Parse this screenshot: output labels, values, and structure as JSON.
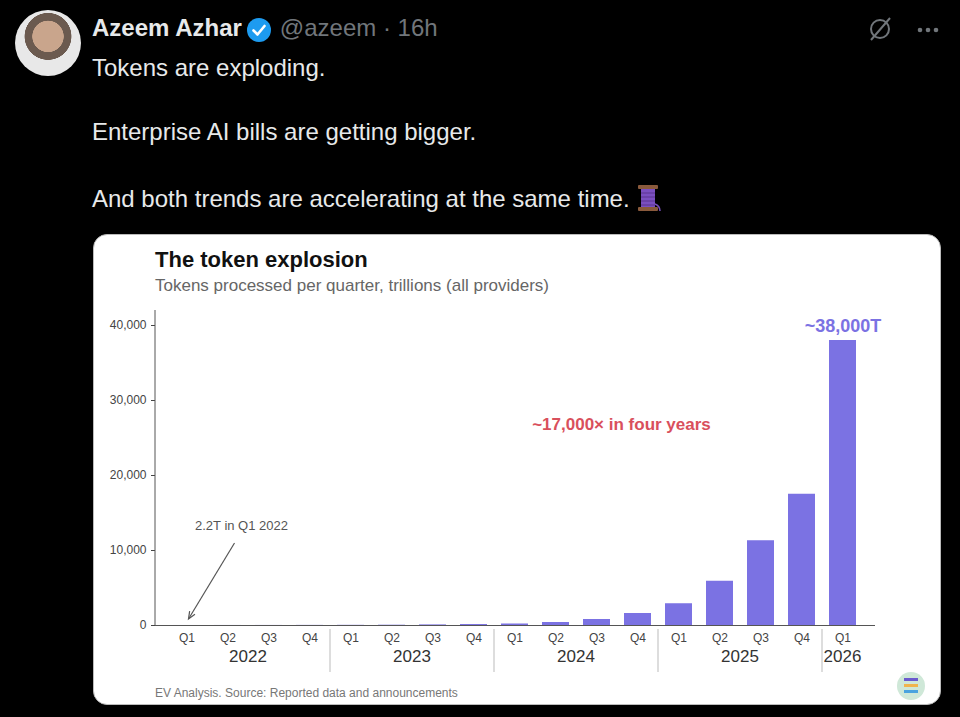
{
  "post": {
    "author": "Azeem Azhar",
    "handle": "@azeem · 16h",
    "text": [
      "Tokens are exploding.",
      "Enterprise AI bills are getting bigger.",
      "And both trends are accelerating at the same time."
    ]
  },
  "chart_data": {
    "type": "bar",
    "title": "The token explosion",
    "subtitle": "Tokens processed per quarter, trillions (all providers)",
    "categories": [
      "Q1",
      "Q2",
      "Q3",
      "Q4",
      "Q1",
      "Q2",
      "Q3",
      "Q4",
      "Q1",
      "Q2",
      "Q3",
      "Q4",
      "Q1",
      "Q2",
      "Q3",
      "Q4",
      "Q1"
    ],
    "years": [
      "2022",
      "2022",
      "2022",
      "2022",
      "2023",
      "2023",
      "2023",
      "2023",
      "2024",
      "2024",
      "2024",
      "2024",
      "2025",
      "2025",
      "2025",
      "2025",
      "2026"
    ],
    "values": [
      2.2,
      5,
      8,
      15,
      25,
      40,
      80,
      130,
      200,
      400,
      800,
      1600,
      2900,
      5900,
      11300,
      17500,
      38000
    ],
    "color": "#7b72e3",
    "ylim": [
      0,
      42000
    ],
    "yticks": [
      0,
      {
        "value": 10000,
        "label": "10,000"
      },
      {
        "value": 20000,
        "label": "20,000"
      },
      {
        "value": 30000,
        "label": "30,000"
      },
      {
        "value": 40000,
        "label": "40,000"
      }
    ],
    "grid": false,
    "annotations": [
      {
        "text": "2.2T in Q1 2022"
      },
      {
        "text": "~17,000× in four years",
        "color": "#d9505c"
      },
      {
        "text": "~38,000T"
      }
    ],
    "caption": "EV Analysis. Source: Reported data and announcements"
  }
}
